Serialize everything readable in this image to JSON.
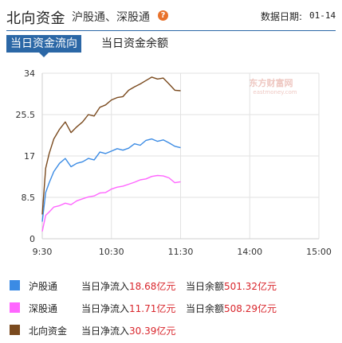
{
  "header": {
    "title": "北向资金",
    "subtitle": "沪股通、深股通",
    "help_icon": "question-icon",
    "date_label": "数据日期:",
    "date_value": "01-14"
  },
  "tabs": [
    {
      "label": "当日资金流向",
      "active": true
    },
    {
      "label": "当日资金余额",
      "active": false
    }
  ],
  "watermark": {
    "cn": "东方财富网",
    "en": "eastmoney.com"
  },
  "legend": [
    {
      "name": "沪股通",
      "color": "#3b8be4",
      "inflow_label": "当日净流入",
      "inflow_value": "18.68亿元",
      "balance_label": "当日余额",
      "balance_value": "501.32亿元"
    },
    {
      "name": "深股通",
      "color": "#ff66ff",
      "inflow_label": "当日净流入",
      "inflow_value": "11.71亿元",
      "balance_label": "当日余额",
      "balance_value": "508.29亿元"
    },
    {
      "name": "北向资金",
      "color": "#7a4a1e",
      "inflow_label": "当日净流入",
      "inflow_value": "30.39亿元"
    }
  ],
  "chart_data": {
    "type": "line",
    "x_ticks": [
      "9:30",
      "10:30",
      "11:30",
      "14:00",
      "15:00"
    ],
    "y_ticks": [
      "0",
      "8.5",
      "17",
      "25.5",
      "34"
    ],
    "ylim": [
      0,
      34
    ],
    "grid": true,
    "series": [
      {
        "name": "沪股通",
        "color": "#3b8be4",
        "t": [
          0,
          3,
          6,
          10,
          15,
          20,
          25,
          30,
          35,
          40,
          45,
          50,
          55,
          60,
          65,
          70,
          75,
          80,
          85,
          90,
          95,
          100,
          105,
          110,
          115,
          120
        ],
        "values": [
          3.5,
          9.5,
          11.5,
          13.8,
          15.5,
          16.5,
          14.8,
          15.5,
          15.8,
          16.5,
          16.2,
          17.8,
          17.5,
          18.0,
          18.5,
          18.2,
          18.6,
          19.5,
          19.2,
          20.2,
          20.5,
          20.0,
          20.3,
          19.7,
          19.0,
          18.7
        ]
      },
      {
        "name": "深股通",
        "color": "#ff66ff",
        "t": [
          0,
          3,
          6,
          10,
          15,
          20,
          25,
          30,
          35,
          40,
          45,
          50,
          55,
          60,
          65,
          70,
          75,
          80,
          85,
          90,
          95,
          100,
          105,
          110,
          115,
          120
        ],
        "values": [
          1.5,
          4.8,
          5.5,
          6.5,
          6.8,
          7.3,
          7.0,
          7.8,
          8.2,
          8.6,
          8.8,
          9.4,
          9.5,
          10.2,
          10.6,
          10.8,
          11.2,
          11.6,
          12.1,
          12.3,
          12.8,
          13.0,
          12.9,
          12.5,
          11.5,
          11.7
        ]
      },
      {
        "name": "北向资金",
        "color": "#7a4a1e",
        "t": [
          0,
          3,
          6,
          10,
          15,
          20,
          25,
          30,
          35,
          40,
          45,
          50,
          55,
          60,
          65,
          70,
          75,
          80,
          85,
          90,
          95,
          100,
          105,
          110,
          115,
          120
        ],
        "values": [
          5.0,
          14.5,
          17.5,
          20.5,
          22.5,
          24.0,
          21.8,
          23.0,
          24.0,
          25.5,
          25.2,
          27.0,
          27.5,
          28.5,
          29.0,
          29.2,
          30.5,
          31.2,
          31.8,
          32.5,
          33.2,
          32.8,
          33.0,
          31.8,
          30.5,
          30.4
        ]
      }
    ],
    "total_minutes": 240
  }
}
